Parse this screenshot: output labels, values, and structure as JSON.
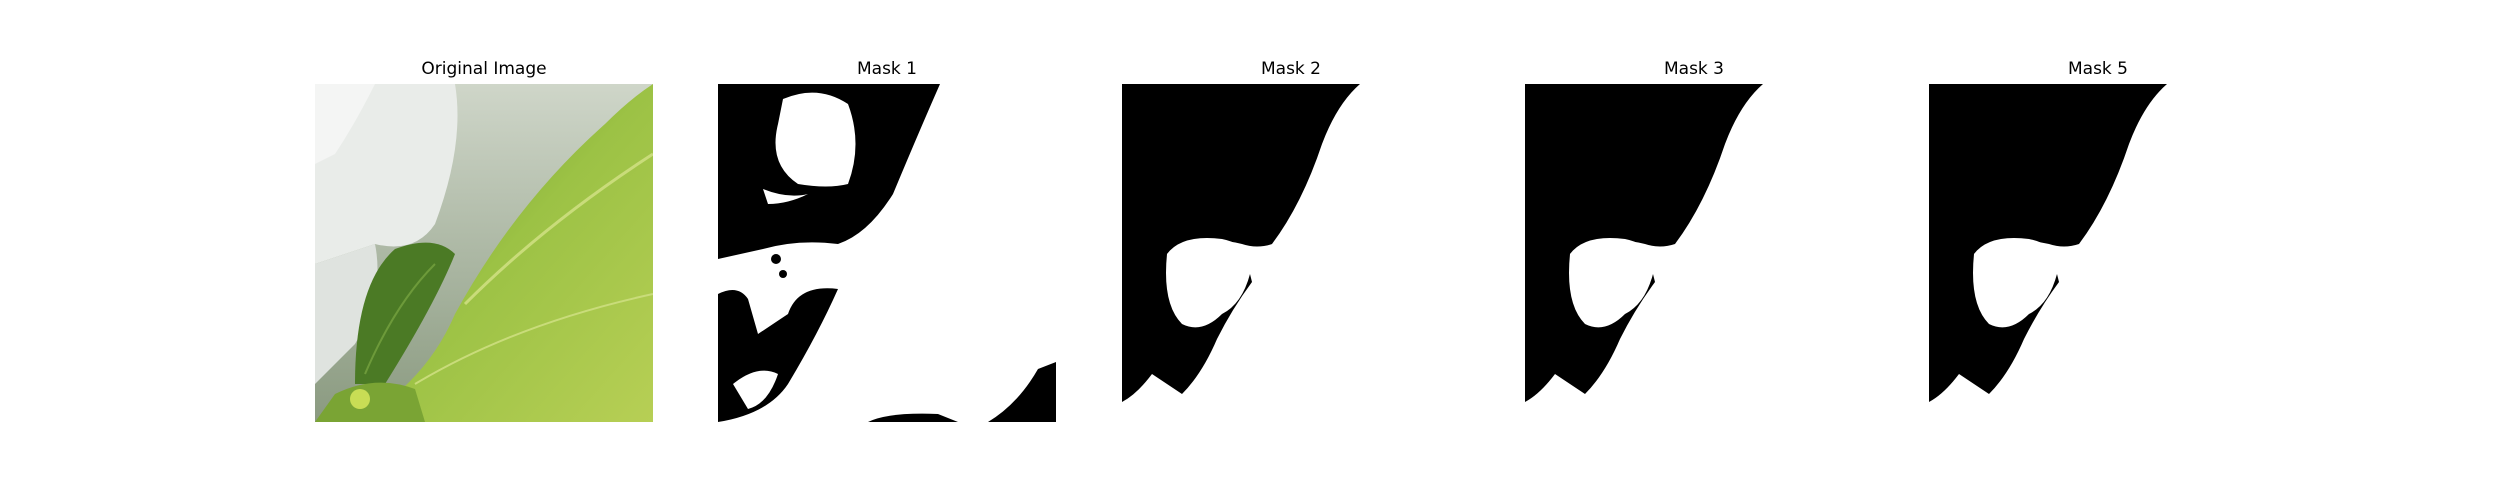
{
  "panels": [
    {
      "title": "Original Image",
      "kind": "photo"
    },
    {
      "title": "Mask 1",
      "kind": "mask"
    },
    {
      "title": "Mask 2",
      "kind": "mask"
    },
    {
      "title": "Mask 3",
      "kind": "mask"
    },
    {
      "title": "Mask 5",
      "kind": "mask"
    }
  ],
  "colors": {
    "mask_foreground": "#ffffff",
    "mask_background": "#000000",
    "leaf_light": "#a9c94a",
    "leaf_mid": "#7ea83a",
    "leaf_dark": "#3f6a1e",
    "petal": "#e6e8e6"
  }
}
